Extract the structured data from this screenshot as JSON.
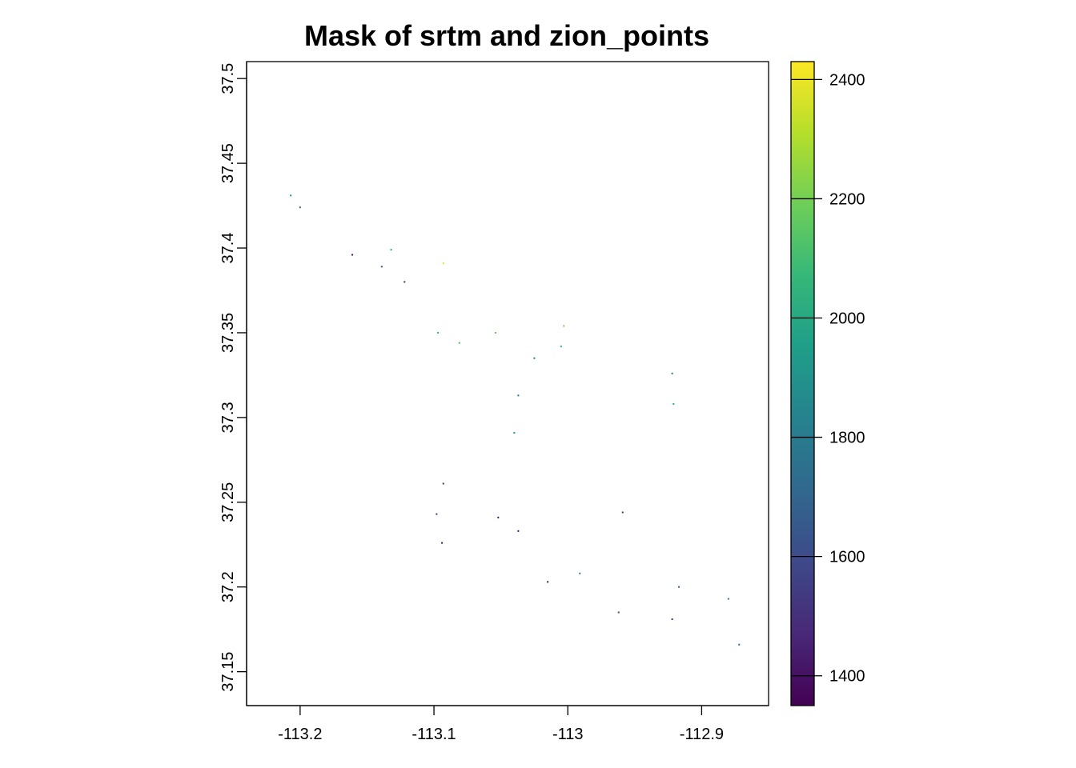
{
  "chart_data": {
    "type": "heatmap",
    "title": "Mask of srtm and zion_points",
    "xlabel": "",
    "ylabel": "",
    "xlim": [
      -113.24,
      -112.85
    ],
    "ylim": [
      37.13,
      37.51
    ],
    "x_ticks": [
      {
        "value": -113.2,
        "label": "-113.2"
      },
      {
        "value": -113.1,
        "label": "-113.1"
      },
      {
        "value": -113.0,
        "label": "-113"
      },
      {
        "value": -112.9,
        "label": "-112.9"
      }
    ],
    "y_ticks": [
      {
        "value": 37.15,
        "label": "37.15"
      },
      {
        "value": 37.2,
        "label": "37.2"
      },
      {
        "value": 37.25,
        "label": "37.25"
      },
      {
        "value": 37.3,
        "label": "37.3"
      },
      {
        "value": 37.35,
        "label": "37.35"
      },
      {
        "value": 37.4,
        "label": "37.4"
      },
      {
        "value": 37.45,
        "label": "37.45"
      },
      {
        "value": 37.5,
        "label": "37.5"
      }
    ],
    "grid": false,
    "colorbar": {
      "range": [
        1350,
        2430
      ],
      "ticks": [
        {
          "value": 1400,
          "label": "1400"
        },
        {
          "value": 1600,
          "label": "1600"
        },
        {
          "value": 1800,
          "label": "1800"
        },
        {
          "value": 2000,
          "label": "2000"
        },
        {
          "value": 2200,
          "label": "2200"
        },
        {
          "value": 2400,
          "label": "2400"
        }
      ],
      "colormap": [
        "#440154",
        "#482878",
        "#3e4989",
        "#31688e",
        "#26828e",
        "#1f9e89",
        "#35b779",
        "#6ece58",
        "#b5de2b",
        "#fde725"
      ]
    },
    "points": [
      {
        "x": -113.207,
        "y": 37.431,
        "value": 1900
      },
      {
        "x": -113.2,
        "y": 37.424,
        "value": 1700
      },
      {
        "x": -113.161,
        "y": 37.396,
        "value": 1400
      },
      {
        "x": -113.132,
        "y": 37.399,
        "value": 2000
      },
      {
        "x": -113.139,
        "y": 37.389,
        "value": 1600
      },
      {
        "x": -113.122,
        "y": 37.38,
        "value": 1500
      },
      {
        "x": -113.093,
        "y": 37.391,
        "value": 2380
      },
      {
        "x": -113.097,
        "y": 37.35,
        "value": 2050
      },
      {
        "x": -113.081,
        "y": 37.344,
        "value": 2100
      },
      {
        "x": -113.054,
        "y": 37.35,
        "value": 2150
      },
      {
        "x": -113.003,
        "y": 37.354,
        "value": 2200
      },
      {
        "x": -113.005,
        "y": 37.342,
        "value": 2050
      },
      {
        "x": -113.025,
        "y": 37.335,
        "value": 1800
      },
      {
        "x": -113.037,
        "y": 37.313,
        "value": 1750
      },
      {
        "x": -113.04,
        "y": 37.291,
        "value": 1900
      },
      {
        "x": -112.922,
        "y": 37.326,
        "value": 1800
      },
      {
        "x": -112.921,
        "y": 37.308,
        "value": 2000
      },
      {
        "x": -113.093,
        "y": 37.261,
        "value": 1500
      },
      {
        "x": -113.098,
        "y": 37.243,
        "value": 1500
      },
      {
        "x": -113.052,
        "y": 37.241,
        "value": 1400
      },
      {
        "x": -113.037,
        "y": 37.233,
        "value": 1400
      },
      {
        "x": -113.094,
        "y": 37.226,
        "value": 1400
      },
      {
        "x": -112.959,
        "y": 37.244,
        "value": 1500
      },
      {
        "x": -112.991,
        "y": 37.208,
        "value": 1800
      },
      {
        "x": -113.015,
        "y": 37.203,
        "value": 1400
      },
      {
        "x": -112.917,
        "y": 37.2,
        "value": 1700
      },
      {
        "x": -112.88,
        "y": 37.193,
        "value": 1800
      },
      {
        "x": -112.962,
        "y": 37.185,
        "value": 1600
      },
      {
        "x": -112.922,
        "y": 37.181,
        "value": 1500
      },
      {
        "x": -112.872,
        "y": 37.166,
        "value": 1700
      }
    ]
  }
}
